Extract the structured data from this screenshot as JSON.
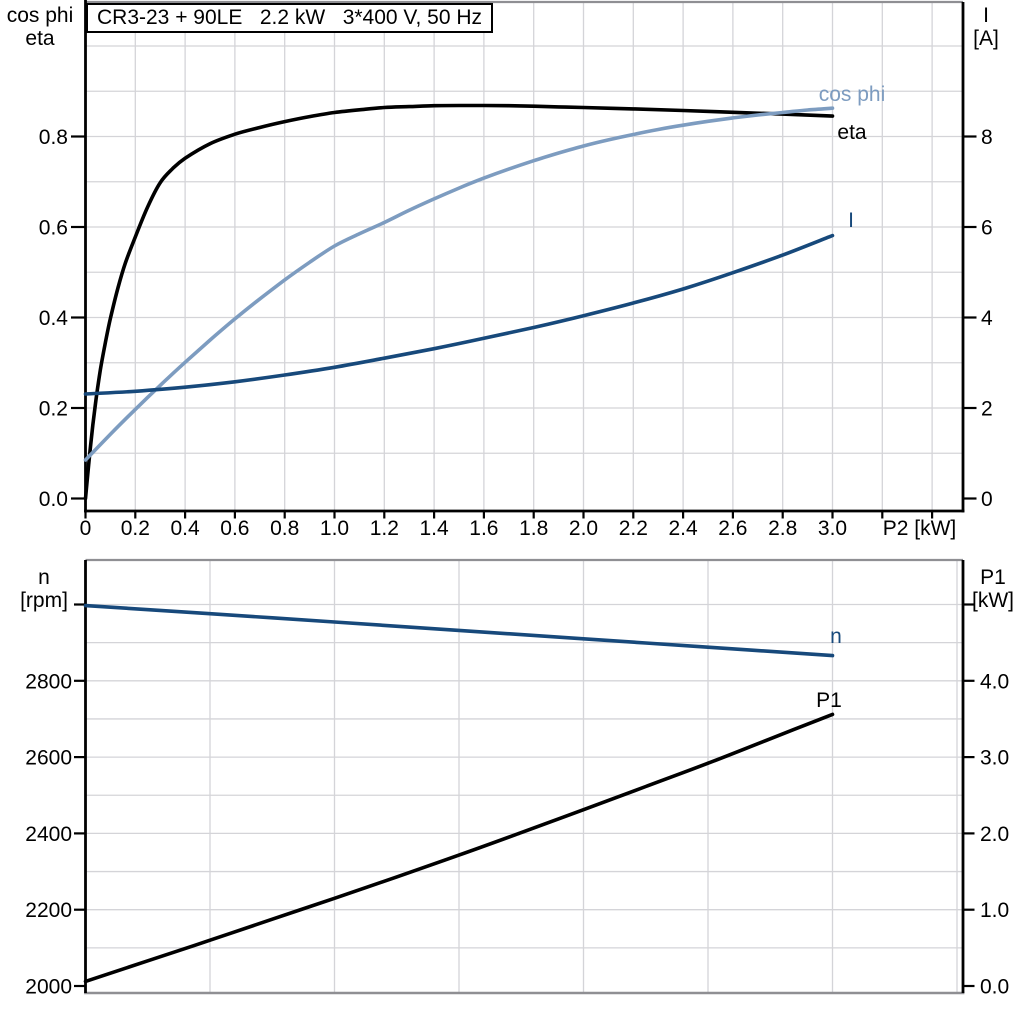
{
  "chart_data": [
    {
      "id": "top-panel",
      "type": "line",
      "title": "CR3-23 + 90LE   2.2 kW   3*400 V, 50 Hz",
      "xlabel": "P2 [kW]",
      "x_axis": {
        "tick_values": [
          0,
          0.2,
          0.4,
          0.6,
          0.8,
          1.0,
          1.2,
          1.4,
          1.6,
          1.8,
          2.0,
          2.2,
          2.4,
          2.6,
          2.8,
          3.0,
          3.2,
          3.4
        ],
        "tick_labels": [
          "0",
          "0.2",
          "0.4",
          "0.6",
          "0.8",
          "1.0",
          "1.2",
          "1.4",
          "1.6",
          "1.8",
          "2.0",
          "2.2",
          "2.4",
          "2.6",
          "2.8",
          "3.0",
          "",
          ""
        ],
        "xlim": [
          0,
          3.53
        ],
        "grid": true
      },
      "left_axis": {
        "title_lines": [
          "cos phi",
          "eta"
        ],
        "tick_values": [
          0,
          0.2,
          0.4,
          0.6,
          0.8
        ],
        "tick_labels": [
          "0.0",
          "0.2",
          "0.4",
          "0.6",
          "0.8"
        ],
        "lim": [
          0,
          1.09
        ],
        "grid_step": 0.1
      },
      "right_axis": {
        "title_lines": [
          "I",
          "[A]"
        ],
        "tick_values": [
          0,
          2,
          4,
          6,
          8
        ],
        "tick_labels": [
          "0",
          "2",
          "4",
          "6",
          "8"
        ],
        "lim": [
          0,
          10.9
        ]
      },
      "series": [
        {
          "name": "eta",
          "label": "eta",
          "color": "#000000",
          "axis": "left",
          "points": [
            [
              0,
              0
            ],
            [
              0.02,
              0.115
            ],
            [
              0.04,
              0.21
            ],
            [
              0.06,
              0.285
            ],
            [
              0.08,
              0.345
            ],
            [
              0.1,
              0.398
            ],
            [
              0.13,
              0.465
            ],
            [
              0.16,
              0.52
            ],
            [
              0.2,
              0.578
            ],
            [
              0.25,
              0.645
            ],
            [
              0.3,
              0.698
            ],
            [
              0.35,
              0.729
            ],
            [
              0.4,
              0.752
            ],
            [
              0.5,
              0.784
            ],
            [
              0.6,
              0.805
            ],
            [
              0.7,
              0.82
            ],
            [
              0.8,
              0.833
            ],
            [
              0.9,
              0.844
            ],
            [
              1.0,
              0.853
            ],
            [
              1.1,
              0.859
            ],
            [
              1.2,
              0.864
            ],
            [
              1.3,
              0.866
            ],
            [
              1.4,
              0.868
            ],
            [
              1.5,
              0.8685
            ],
            [
              1.6,
              0.8685
            ],
            [
              1.7,
              0.868
            ],
            [
              1.8,
              0.867
            ],
            [
              1.9,
              0.8655
            ],
            [
              2.0,
              0.864
            ],
            [
              2.2,
              0.861
            ],
            [
              2.4,
              0.8575
            ],
            [
              2.6,
              0.8535
            ],
            [
              2.8,
              0.8495
            ],
            [
              3.0,
              0.845
            ]
          ]
        },
        {
          "name": "cos_phi",
          "label": "cos phi",
          "color": "#7d9cc0",
          "axis": "left",
          "points": [
            [
              0,
              0.085
            ],
            [
              0.1,
              0.142
            ],
            [
              0.2,
              0.197
            ],
            [
              0.3,
              0.25
            ],
            [
              0.4,
              0.301
            ],
            [
              0.5,
              0.35
            ],
            [
              0.6,
              0.397
            ],
            [
              0.7,
              0.441
            ],
            [
              0.8,
              0.483
            ],
            [
              0.9,
              0.522
            ],
            [
              1.0,
              0.558
            ],
            [
              1.1,
              0.585
            ],
            [
              1.2,
              0.61
            ],
            [
              1.3,
              0.637
            ],
            [
              1.4,
              0.662
            ],
            [
              1.5,
              0.686
            ],
            [
              1.6,
              0.708
            ],
            [
              1.7,
              0.728
            ],
            [
              1.8,
              0.7465
            ],
            [
              1.9,
              0.7635
            ],
            [
              2.0,
              0.779
            ],
            [
              2.1,
              0.7925
            ],
            [
              2.2,
              0.8045
            ],
            [
              2.3,
              0.8155
            ],
            [
              2.4,
              0.825
            ],
            [
              2.5,
              0.8335
            ],
            [
              2.6,
              0.841
            ],
            [
              2.7,
              0.8475
            ],
            [
              2.8,
              0.853
            ],
            [
              2.9,
              0.8585
            ],
            [
              3.0,
              0.8625
            ]
          ]
        },
        {
          "name": "I",
          "label": "I",
          "color": "#17497b",
          "axis": "right",
          "points": [
            [
              0,
              2.31
            ],
            [
              0.2,
              2.37
            ],
            [
              0.4,
              2.46
            ],
            [
              0.6,
              2.58
            ],
            [
              0.8,
              2.73
            ],
            [
              1.0,
              2.9
            ],
            [
              1.2,
              3.1
            ],
            [
              1.4,
              3.31
            ],
            [
              1.6,
              3.54
            ],
            [
              1.8,
              3.78
            ],
            [
              2.0,
              4.04
            ],
            [
              2.2,
              4.32
            ],
            [
              2.4,
              4.63
            ],
            [
              2.6,
              4.99
            ],
            [
              2.8,
              5.38
            ],
            [
              3.0,
              5.81
            ]
          ]
        }
      ]
    },
    {
      "id": "bottom-panel",
      "type": "line",
      "left_axis": {
        "title_lines": [
          "n",
          "[rpm]"
        ],
        "tick_values": [
          2000,
          2200,
          2400,
          2600,
          2800,
          3000
        ],
        "tick_labels": [
          "2000",
          "2200",
          "2400",
          "2600",
          "2800",
          ""
        ],
        "grid_step": 100
      },
      "right_axis": {
        "title_lines": [
          "P1",
          "[kW]"
        ],
        "tick_values": [
          0,
          1,
          2,
          3,
          4,
          5
        ],
        "tick_labels": [
          "0.0",
          "1.0",
          "2.0",
          "3.0",
          "4.0",
          ""
        ]
      },
      "x_grid_values": [
        0.5,
        1.0,
        1.5,
        2.0,
        2.5,
        3.0,
        3.5
      ],
      "series": [
        {
          "name": "n",
          "label": "n",
          "color": "#17497b",
          "axis": "left",
          "points": [
            [
              0,
              2997
            ],
            [
              0.5,
              2976
            ],
            [
              1.0,
              2954
            ],
            [
              1.5,
              2932
            ],
            [
              2.0,
              2910
            ],
            [
              2.5,
              2888
            ],
            [
              3.0,
              2866
            ]
          ]
        },
        {
          "name": "P1",
          "label": "P1",
          "color": "#000000",
          "axis": "right",
          "points": [
            [
              0,
              0.06
            ],
            [
              0.25,
              0.33
            ],
            [
              0.5,
              0.6
            ],
            [
              0.75,
              0.875
            ],
            [
              1.0,
              1.15
            ],
            [
              1.25,
              1.43
            ],
            [
              1.5,
              1.715
            ],
            [
              1.75,
              2.01
            ],
            [
              2.0,
              2.31
            ],
            [
              2.25,
              2.615
            ],
            [
              2.5,
              2.92
            ],
            [
              2.75,
              3.24
            ],
            [
              3.0,
              3.56
            ]
          ]
        }
      ]
    }
  ],
  "colors": {
    "grid": "#d4d4d8",
    "panel_border": "#8f8f93",
    "axis": "#000000",
    "background": "#ffffff"
  }
}
